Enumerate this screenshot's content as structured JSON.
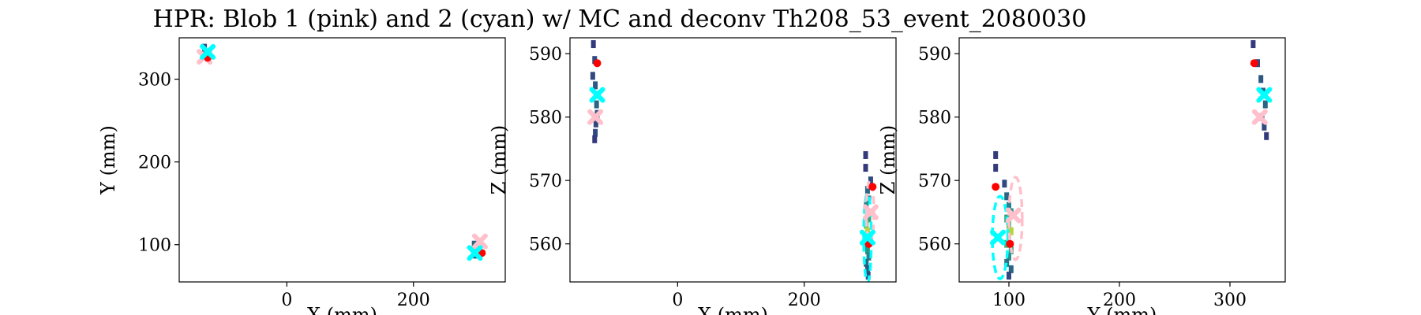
{
  "title": "HPR: Blob 1 (pink) and 2 (cyan) w/ MC and deconv Th208_53_event_2080030",
  "colors": {
    "blob1": "#ffc0cb",
    "blob2": "#00ffff",
    "mc": "#ff0000",
    "hit_low": "#3b0f6f",
    "hit_high": "#f9e21e"
  },
  "chart_data": [
    {
      "type": "scatter",
      "xlabel": "X (mm)",
      "ylabel": "Y (mm)",
      "xlim": [
        -170,
        345
      ],
      "ylim": [
        55,
        350
      ],
      "xticks": [
        0,
        200
      ],
      "yticks": [
        100,
        200,
        300
      ],
      "hits": [
        {
          "x": -130,
          "y": 338,
          "v": 0.2
        },
        {
          "x": -128,
          "y": 330,
          "v": 0.3
        },
        {
          "x": -125,
          "y": 326,
          "v": 0.2
        },
        {
          "x": 296,
          "y": 100,
          "v": 0.3
        },
        {
          "x": 300,
          "y": 96,
          "v": 0.4
        },
        {
          "x": 304,
          "y": 92,
          "v": 0.3
        },
        {
          "x": 298,
          "y": 88,
          "v": 0.2
        }
      ],
      "blob1": [
        {
          "x": -130,
          "y": 327
        },
        {
          "x": 305,
          "y": 104
        }
      ],
      "blob2": [
        {
          "x": -125,
          "y": 333
        },
        {
          "x": 297,
          "y": 90
        }
      ],
      "mc": [
        {
          "x": -125,
          "y": 326
        },
        {
          "x": 308,
          "y": 90
        }
      ],
      "ellipses": []
    },
    {
      "type": "scatter",
      "xlabel": "X (mm)",
      "ylabel": "Z (mm)",
      "xlim": [
        -170,
        345
      ],
      "ylim": [
        554,
        592.5
      ],
      "xticks": [
        0,
        200
      ],
      "yticks": [
        560,
        570,
        580,
        590
      ],
      "hits": [
        {
          "x": -133,
          "y": 591.5,
          "v": 0.15
        },
        {
          "x": -131,
          "y": 589.0,
          "v": 0.2
        },
        {
          "x": -134,
          "y": 586.5,
          "v": 0.2
        },
        {
          "x": -130,
          "y": 585.0,
          "v": 0.25
        },
        {
          "x": -129,
          "y": 583.5,
          "v": 0.3
        },
        {
          "x": -128,
          "y": 582.0,
          "v": 0.3
        },
        {
          "x": -127,
          "y": 580.5,
          "v": 0.25
        },
        {
          "x": -129,
          "y": 579.0,
          "v": 0.2
        },
        {
          "x": -130,
          "y": 577.5,
          "v": 0.2
        },
        {
          "x": -131,
          "y": 576.5,
          "v": 0.15
        },
        {
          "x": 297,
          "y": 574,
          "v": 0.15
        },
        {
          "x": 297,
          "y": 572,
          "v": 0.15
        },
        {
          "x": 305,
          "y": 570,
          "v": 0.2
        },
        {
          "x": 300,
          "y": 568.5,
          "v": 0.3
        },
        {
          "x": 302,
          "y": 567,
          "v": 0.35
        },
        {
          "x": 298,
          "y": 566,
          "v": 0.45
        },
        {
          "x": 300,
          "y": 565,
          "v": 0.5
        },
        {
          "x": 302,
          "y": 564,
          "v": 0.6
        },
        {
          "x": 298,
          "y": 563,
          "v": 0.75
        },
        {
          "x": 300,
          "y": 562,
          "v": 0.9
        },
        {
          "x": 302,
          "y": 561,
          "v": 0.8
        },
        {
          "x": 298,
          "y": 560,
          "v": 0.65
        },
        {
          "x": 300,
          "y": 559,
          "v": 0.5
        },
        {
          "x": 302,
          "y": 558,
          "v": 0.4
        },
        {
          "x": 298,
          "y": 557,
          "v": 0.3
        },
        {
          "x": 300,
          "y": 556,
          "v": 0.25
        },
        {
          "x": 301,
          "y": 555,
          "v": 0.2
        }
      ],
      "blob1": [
        {
          "x": -130,
          "y": 580
        },
        {
          "x": 305,
          "y": 565
        }
      ],
      "blob2": [
        {
          "x": -127,
          "y": 583.5
        },
        {
          "x": 300,
          "y": 561
        }
      ],
      "mc": [
        {
          "x": -127,
          "y": 588.5
        },
        {
          "x": 308,
          "y": 569
        },
        {
          "x": 302,
          "y": 560
        }
      ],
      "ellipses": [
        {
          "cx": 300,
          "cy": 561,
          "rx": 6,
          "ry": 7,
          "color": "blob2"
        },
        {
          "cx": 304,
          "cy": 565,
          "rx": 6,
          "ry": 5,
          "color": "blob1"
        }
      ]
    },
    {
      "type": "scatter",
      "xlabel": "Y (mm)",
      "ylabel": "Z (mm)",
      "xlim": [
        55,
        350
      ],
      "ylim": [
        554,
        592.5
      ],
      "xticks": [
        100,
        200,
        300
      ],
      "yticks": [
        560,
        570,
        580,
        590
      ],
      "hits": [
        {
          "x": 321,
          "y": 591.5,
          "v": 0.15
        },
        {
          "x": 325,
          "y": 588.5,
          "v": 0.2
        },
        {
          "x": 328,
          "y": 586,
          "v": 0.25
        },
        {
          "x": 330,
          "y": 584,
          "v": 0.3
        },
        {
          "x": 332,
          "y": 582,
          "v": 0.3
        },
        {
          "x": 329,
          "y": 580,
          "v": 0.25
        },
        {
          "x": 331,
          "y": 578.5,
          "v": 0.2
        },
        {
          "x": 333,
          "y": 577,
          "v": 0.15
        },
        {
          "x": 88,
          "y": 574,
          "v": 0.15
        },
        {
          "x": 88,
          "y": 572,
          "v": 0.15
        },
        {
          "x": 96,
          "y": 569.5,
          "v": 0.2
        },
        {
          "x": 98,
          "y": 567.5,
          "v": 0.3
        },
        {
          "x": 100,
          "y": 566,
          "v": 0.4
        },
        {
          "x": 102,
          "y": 565,
          "v": 0.5
        },
        {
          "x": 98,
          "y": 564,
          "v": 0.6
        },
        {
          "x": 100,
          "y": 563,
          "v": 0.75
        },
        {
          "x": 102,
          "y": 562,
          "v": 0.9
        },
        {
          "x": 100,
          "y": 561,
          "v": 0.85
        },
        {
          "x": 98,
          "y": 560,
          "v": 0.7
        },
        {
          "x": 102,
          "y": 559,
          "v": 0.55
        },
        {
          "x": 100,
          "y": 558,
          "v": 0.45
        },
        {
          "x": 98,
          "y": 557,
          "v": 0.35
        },
        {
          "x": 102,
          "y": 556,
          "v": 0.3
        },
        {
          "x": 100,
          "y": 555,
          "v": 0.2
        }
      ],
      "blob1": [
        {
          "x": 327,
          "y": 580
        },
        {
          "x": 104,
          "y": 564.5
        }
      ],
      "blob2": [
        {
          "x": 331,
          "y": 583.5
        },
        {
          "x": 90,
          "y": 561
        }
      ],
      "mc": [
        {
          "x": 322,
          "y": 588.5
        },
        {
          "x": 88,
          "y": 569
        },
        {
          "x": 101,
          "y": 560
        }
      ],
      "ellipses": [
        {
          "cx": 92,
          "cy": 561,
          "rx": 7,
          "ry": 6.5,
          "color": "blob2"
        },
        {
          "cx": 106,
          "cy": 564,
          "rx": 6,
          "ry": 6.5,
          "color": "blob1"
        }
      ]
    }
  ]
}
